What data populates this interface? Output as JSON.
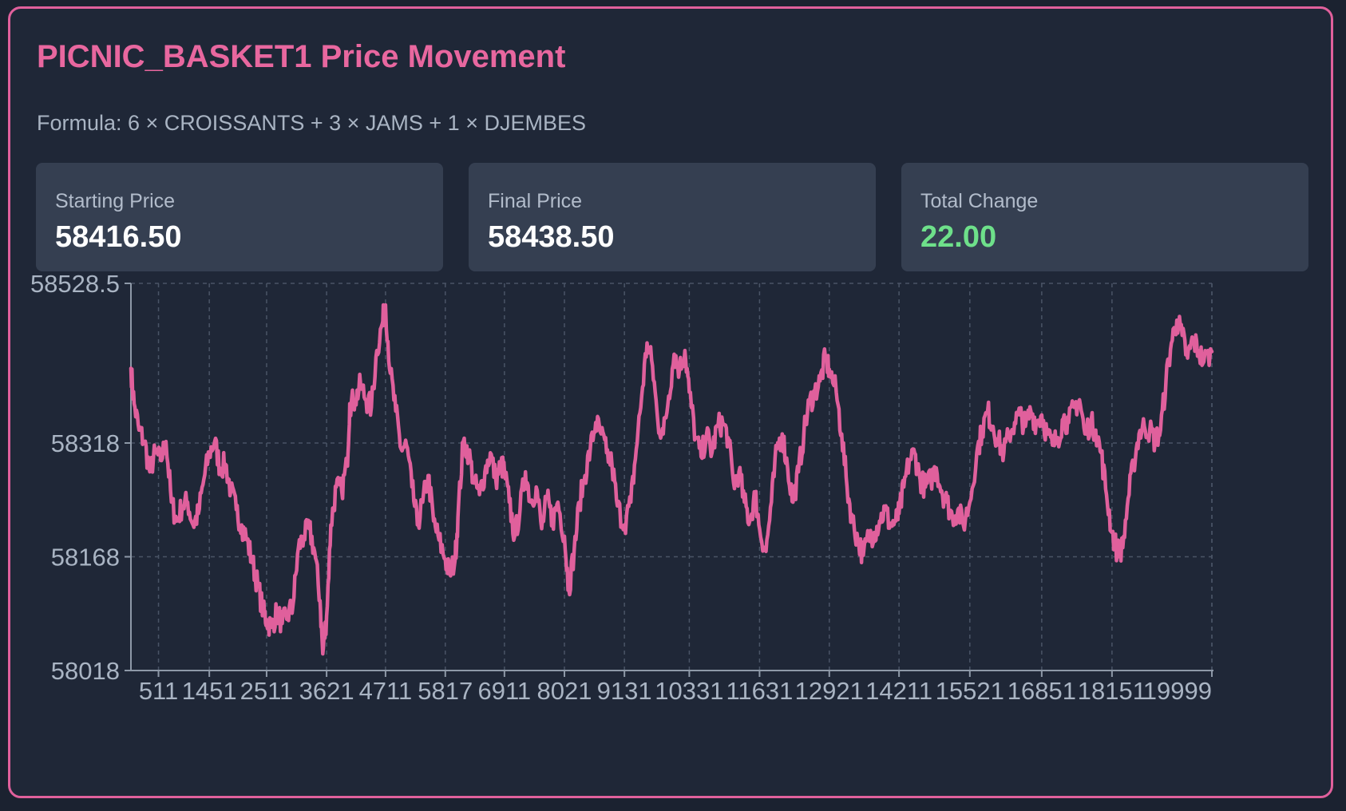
{
  "title": "PICNIC_BASKET1 Price Movement",
  "formula": "Formula: 6 × CROISSANTS + 3 × JAMS + 1 × DJEMBES",
  "stats": [
    {
      "label": "Starting Price",
      "value": "58416.50"
    },
    {
      "label": "Final Price",
      "value": "58438.50"
    },
    {
      "label": "Total Change",
      "value": "22.00"
    }
  ],
  "colors": {
    "accent": "#e8679f",
    "line": "#e0609c",
    "positive": "#6ee08a",
    "background": "#1f2737",
    "stat_card": "#353f51",
    "grid": "#4a5466",
    "axis": "#8e99a8"
  },
  "chart_data": {
    "type": "line",
    "title": "",
    "xlabel": "",
    "ylabel": "",
    "grid": true,
    "x_range": [
      1,
      19999
    ],
    "ylim": [
      58018,
      58528.5
    ],
    "x_ticks": [
      511,
      1451,
      2511,
      3621,
      4711,
      5817,
      6911,
      8021,
      9131,
      10331,
      11631,
      12921,
      14211,
      15521,
      16851,
      18151,
      19999
    ],
    "y_ticks": [
      "58018",
      "58168",
      "58318",
      "58528.5"
    ],
    "series": [
      {
        "values": [
          [
            1,
            58416.5
          ],
          [
            60,
            58370
          ],
          [
            150,
            58335
          ],
          [
            250,
            58320
          ],
          [
            350,
            58280
          ],
          [
            450,
            58305
          ],
          [
            550,
            58295
          ],
          [
            650,
            58320
          ],
          [
            750,
            58240
          ],
          [
            850,
            58215
          ],
          [
            950,
            58235
          ],
          [
            1050,
            58240
          ],
          [
            1150,
            58210
          ],
          [
            1250,
            58225
          ],
          [
            1350,
            58270
          ],
          [
            1451,
            58305
          ],
          [
            1550,
            58320
          ],
          [
            1650,
            58285
          ],
          [
            1750,
            58290
          ],
          [
            1850,
            58255
          ],
          [
            1950,
            58230
          ],
          [
            2050,
            58210
          ],
          [
            2150,
            58190
          ],
          [
            2250,
            58160
          ],
          [
            2350,
            58130
          ],
          [
            2450,
            58095
          ],
          [
            2511,
            58085
          ],
          [
            2600,
            58075
          ],
          [
            2700,
            58095
          ],
          [
            2800,
            58080
          ],
          [
            2900,
            58090
          ],
          [
            3000,
            58105
          ],
          [
            3100,
            58180
          ],
          [
            3200,
            58195
          ],
          [
            3300,
            58205
          ],
          [
            3400,
            58175
          ],
          [
            3500,
            58110
          ],
          [
            3550,
            58040
          ],
          [
            3621,
            58090
          ],
          [
            3700,
            58210
          ],
          [
            3800,
            58260
          ],
          [
            3900,
            58255
          ],
          [
            4000,
            58290
          ],
          [
            4050,
            58370
          ],
          [
            4150,
            58375
          ],
          [
            4250,
            58395
          ],
          [
            4350,
            58375
          ],
          [
            4450,
            58365
          ],
          [
            4550,
            58440
          ],
          [
            4650,
            58475
          ],
          [
            4711,
            58500
          ],
          [
            4800,
            58410
          ],
          [
            4900,
            58360
          ],
          [
            5000,
            58310
          ],
          [
            5100,
            58315
          ],
          [
            5200,
            58260
          ],
          [
            5300,
            58210
          ],
          [
            5400,
            58240
          ],
          [
            5500,
            58275
          ],
          [
            5600,
            58215
          ],
          [
            5700,
            58190
          ],
          [
            5817,
            58165
          ],
          [
            5900,
            58145
          ],
          [
            6000,
            58165
          ],
          [
            6050,
            58220
          ],
          [
            6150,
            58320
          ],
          [
            6250,
            58305
          ],
          [
            6350,
            58265
          ],
          [
            6450,
            58250
          ],
          [
            6550,
            58280
          ],
          [
            6650,
            58305
          ],
          [
            6750,
            58270
          ],
          [
            6850,
            58290
          ],
          [
            6911,
            58280
          ],
          [
            7000,
            58240
          ],
          [
            7100,
            58195
          ],
          [
            7200,
            58230
          ],
          [
            7300,
            58280
          ],
          [
            7400,
            58240
          ],
          [
            7500,
            58260
          ],
          [
            7600,
            58205
          ],
          [
            7700,
            58245
          ],
          [
            7800,
            58215
          ],
          [
            7900,
            58240
          ],
          [
            8021,
            58195
          ],
          [
            8100,
            58125
          ],
          [
            8200,
            58175
          ],
          [
            8300,
            58240
          ],
          [
            8400,
            58275
          ],
          [
            8500,
            58310
          ],
          [
            8600,
            58345
          ],
          [
            8700,
            58330
          ],
          [
            8800,
            58305
          ],
          [
            8900,
            58290
          ],
          [
            9000,
            58235
          ],
          [
            9131,
            58210
          ],
          [
            9250,
            58240
          ],
          [
            9350,
            58310
          ],
          [
            9450,
            58380
          ],
          [
            9550,
            58450
          ],
          [
            9650,
            58420
          ],
          [
            9750,
            58345
          ],
          [
            9850,
            58330
          ],
          [
            9950,
            58380
          ],
          [
            10050,
            58435
          ],
          [
            10150,
            58415
          ],
          [
            10250,
            58440
          ],
          [
            10331,
            58385
          ],
          [
            10450,
            58325
          ],
          [
            10550,
            58300
          ],
          [
            10650,
            58330
          ],
          [
            10750,
            58305
          ],
          [
            10850,
            58340
          ],
          [
            10950,
            58345
          ],
          [
            11050,
            58325
          ],
          [
            11150,
            58265
          ],
          [
            11250,
            58280
          ],
          [
            11350,
            58240
          ],
          [
            11450,
            58215
          ],
          [
            11550,
            58250
          ],
          [
            11631,
            58205
          ],
          [
            11750,
            58175
          ],
          [
            11850,
            58240
          ],
          [
            11950,
            58310
          ],
          [
            12050,
            58330
          ],
          [
            12150,
            58285
          ],
          [
            12250,
            58240
          ],
          [
            12350,
            58280
          ],
          [
            12450,
            58330
          ],
          [
            12550,
            58370
          ],
          [
            12650,
            58385
          ],
          [
            12750,
            58400
          ],
          [
            12850,
            58430
          ],
          [
            12921,
            58415
          ],
          [
            13050,
            58385
          ],
          [
            13150,
            58330
          ],
          [
            13250,
            58260
          ],
          [
            13350,
            58215
          ],
          [
            13450,
            58190
          ],
          [
            13550,
            58170
          ],
          [
            13650,
            58195
          ],
          [
            13750,
            58200
          ],
          [
            13850,
            58215
          ],
          [
            13950,
            58230
          ],
          [
            14050,
            58210
          ],
          [
            14150,
            58215
          ],
          [
            14211,
            58225
          ],
          [
            14300,
            58260
          ],
          [
            14400,
            58295
          ],
          [
            14500,
            58305
          ],
          [
            14600,
            58270
          ],
          [
            14700,
            58260
          ],
          [
            14800,
            58270
          ],
          [
            14900,
            58285
          ],
          [
            15000,
            58255
          ],
          [
            15100,
            58240
          ],
          [
            15200,
            58220
          ],
          [
            15300,
            58230
          ],
          [
            15400,
            58210
          ],
          [
            15521,
            58240
          ],
          [
            15650,
            58305
          ],
          [
            15750,
            58335
          ],
          [
            15850,
            58360
          ],
          [
            15950,
            58340
          ],
          [
            16050,
            58320
          ],
          [
            16150,
            58305
          ],
          [
            16250,
            58330
          ],
          [
            16350,
            58345
          ],
          [
            16450,
            58355
          ],
          [
            16550,
            58340
          ],
          [
            16650,
            58360
          ],
          [
            16750,
            58345
          ],
          [
            16851,
            58355
          ],
          [
            16950,
            58330
          ],
          [
            17050,
            58315
          ],
          [
            17150,
            58325
          ],
          [
            17250,
            58350
          ],
          [
            17350,
            58345
          ],
          [
            17450,
            58365
          ],
          [
            17550,
            58375
          ],
          [
            17650,
            58330
          ],
          [
            17750,
            58345
          ],
          [
            17850,
            58335
          ],
          [
            17950,
            58305
          ],
          [
            18050,
            58250
          ],
          [
            18151,
            58200
          ],
          [
            18250,
            58175
          ],
          [
            18350,
            58180
          ],
          [
            18450,
            58245
          ],
          [
            18550,
            58290
          ],
          [
            18650,
            58330
          ],
          [
            18750,
            58340
          ],
          [
            18850,
            58335
          ],
          [
            18950,
            58320
          ],
          [
            19050,
            58335
          ],
          [
            19150,
            58400
          ],
          [
            19250,
            58450
          ],
          [
            19350,
            58480
          ],
          [
            19450,
            58460
          ],
          [
            19550,
            58430
          ],
          [
            19650,
            58455
          ],
          [
            19750,
            58440
          ],
          [
            19850,
            58425
          ],
          [
            19999,
            58438.5
          ]
        ]
      }
    ]
  }
}
